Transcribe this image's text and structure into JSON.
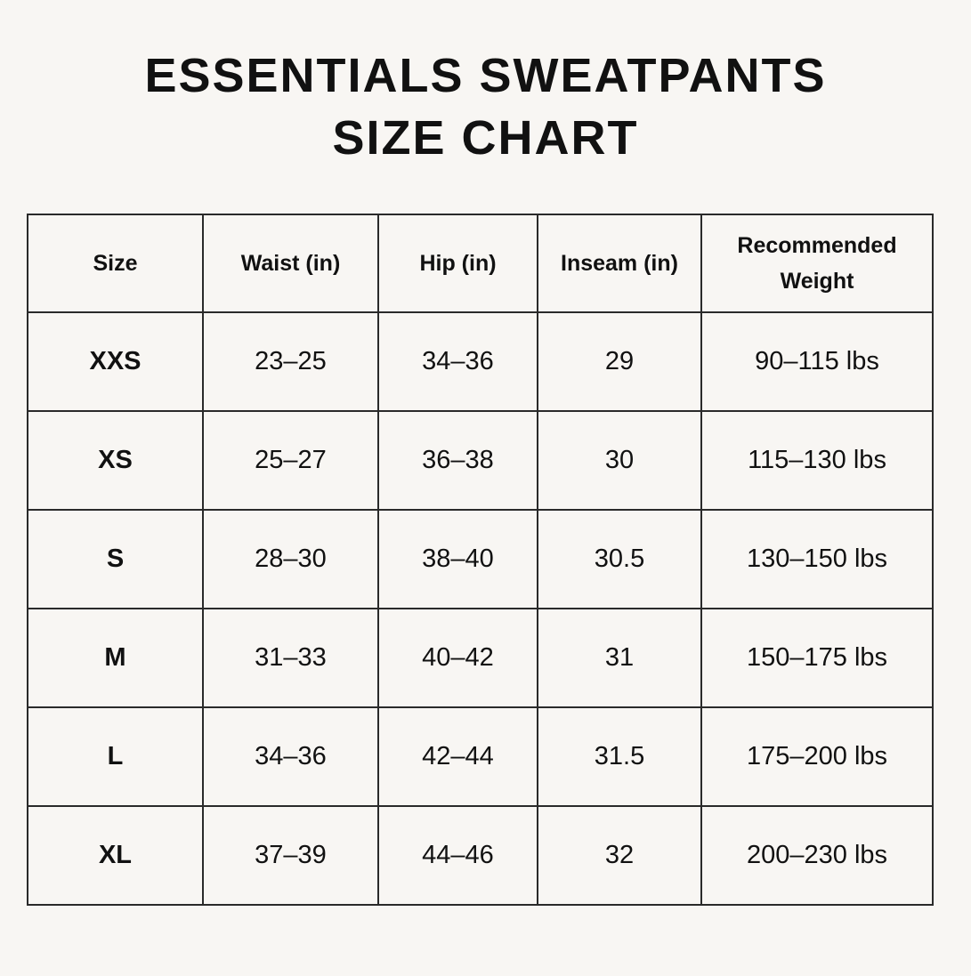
{
  "header": {
    "title": [
      "ESSENTIALS SWEATPANTS",
      "SIZE CHART"
    ]
  },
  "table": {
    "columns": [
      "Size",
      "Waist (in)",
      "Hip (in)",
      "Inseam (in)",
      "Recommended Weight"
    ],
    "rows": [
      [
        "XXS",
        "23–25",
        "34–36",
        "29",
        "90–115 lbs"
      ],
      [
        "XS",
        "25–27",
        "36–38",
        "30",
        "115–130 lbs"
      ],
      [
        "S",
        "28–30",
        "38–40",
        "30.5",
        "130–150 lbs"
      ],
      [
        "M",
        "31–33",
        "40–42",
        "31",
        "150–175 lbs"
      ],
      [
        "L",
        "34–36",
        "42–44",
        "31.5",
        "175–200 lbs"
      ],
      [
        "XL",
        "37–39",
        "44–46",
        "32",
        "200–230 lbs"
      ]
    ]
  }
}
